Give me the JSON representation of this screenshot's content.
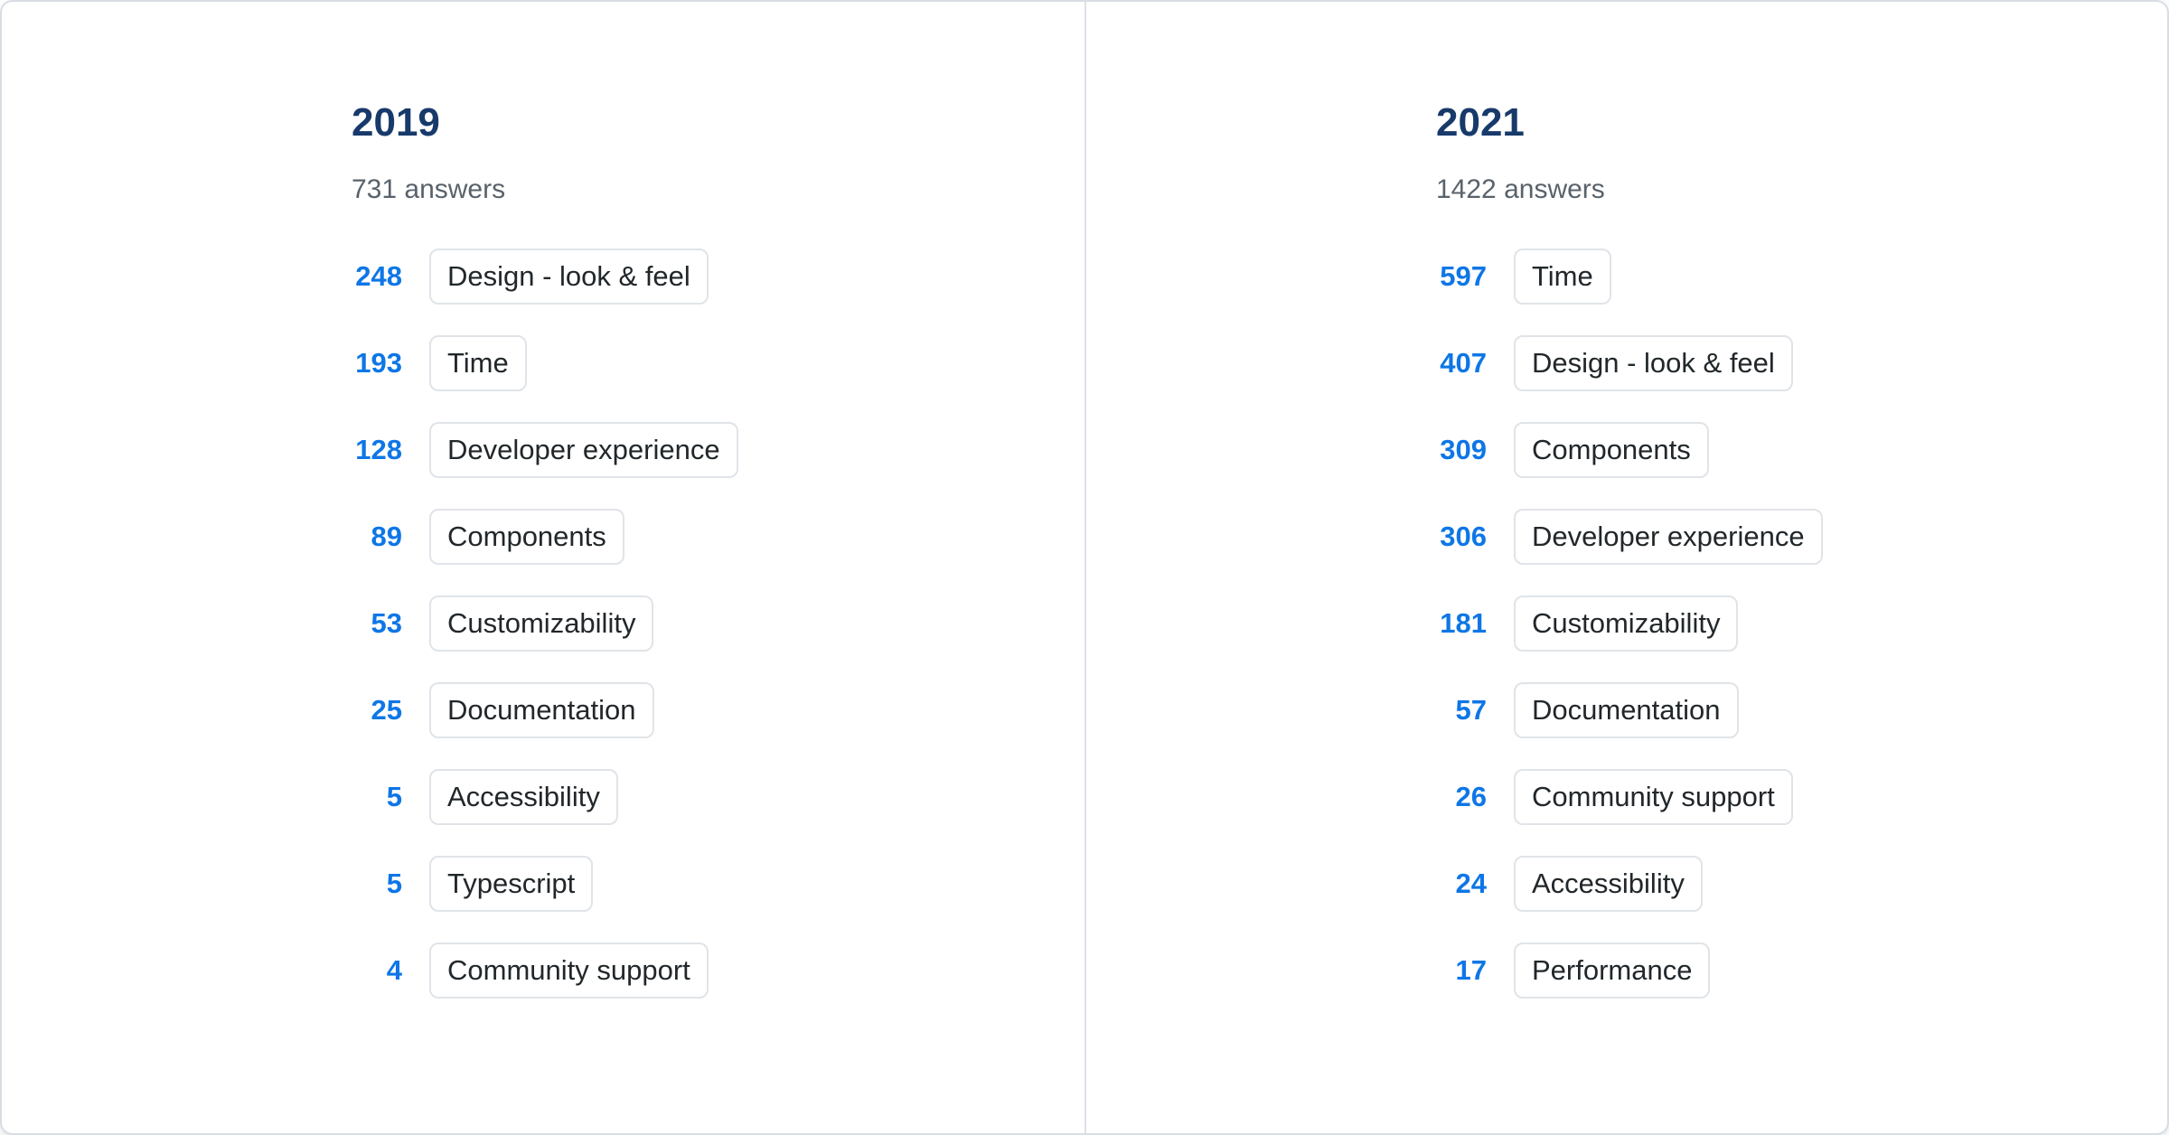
{
  "colors": {
    "heading_navy": "#173a6b",
    "count_blue": "#0e76e6",
    "subtitle_gray": "#59626b",
    "chip_border": "#e0e4e8",
    "chip_text": "#21272a",
    "divider": "#dde1e6",
    "card_border": "#d9dee4",
    "background": "#ffffff"
  },
  "chart_data": [
    {
      "type": "table",
      "title": "2019",
      "subtitle": "731 answers",
      "categories": [
        "Design - look & feel",
        "Time",
        "Developer experience",
        "Components",
        "Customizability",
        "Documentation",
        "Accessibility",
        "Typescript",
        "Community support"
      ],
      "values": [
        248,
        193,
        128,
        89,
        53,
        25,
        5,
        5,
        4
      ]
    },
    {
      "type": "table",
      "title": "2021",
      "subtitle": "1422 answers",
      "categories": [
        "Time",
        "Design - look & feel",
        "Components",
        "Developer experience",
        "Customizability",
        "Documentation",
        "Community support",
        "Accessibility",
        "Performance"
      ],
      "values": [
        597,
        407,
        309,
        306,
        181,
        57,
        26,
        24,
        17
      ]
    }
  ],
  "panels": [
    {
      "year": "2019",
      "answers_label": "731 answers",
      "items": [
        {
          "count": "248",
          "label": "Design - look & feel"
        },
        {
          "count": "193",
          "label": "Time"
        },
        {
          "count": "128",
          "label": "Developer experience"
        },
        {
          "count": "89",
          "label": "Components"
        },
        {
          "count": "53",
          "label": "Customizability"
        },
        {
          "count": "25",
          "label": "Documentation"
        },
        {
          "count": "5",
          "label": "Accessibility"
        },
        {
          "count": "5",
          "label": "Typescript"
        },
        {
          "count": "4",
          "label": "Community support"
        }
      ]
    },
    {
      "year": "2021",
      "answers_label": "1422 answers",
      "items": [
        {
          "count": "597",
          "label": "Time"
        },
        {
          "count": "407",
          "label": "Design - look & feel"
        },
        {
          "count": "309",
          "label": "Components"
        },
        {
          "count": "306",
          "label": "Developer experience"
        },
        {
          "count": "181",
          "label": "Customizability"
        },
        {
          "count": "57",
          "label": "Documentation"
        },
        {
          "count": "26",
          "label": "Community support"
        },
        {
          "count": "24",
          "label": "Accessibility"
        },
        {
          "count": "17",
          "label": "Performance"
        }
      ]
    }
  ]
}
